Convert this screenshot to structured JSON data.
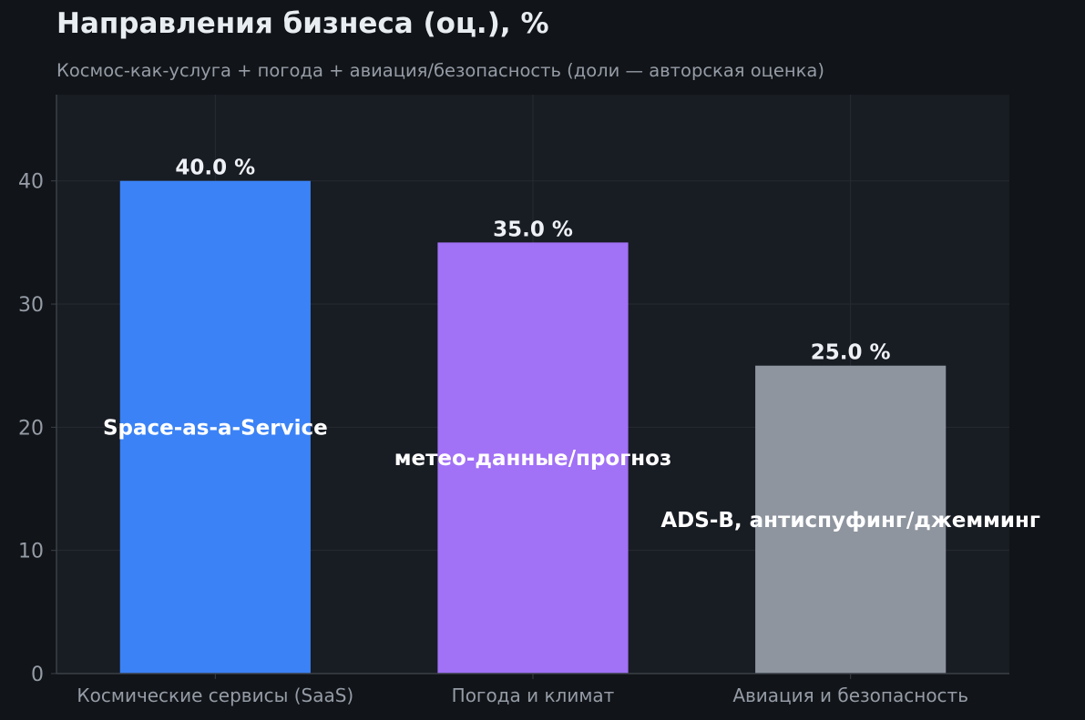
{
  "title": "Направления бизнеса (оц.), %",
  "subtitle": "Космос-как-услуга + погода + авиация/безопасность (доли — авторская оценка)",
  "colors": {
    "background": "#111418",
    "plot_background": "#181c23",
    "grid": "#262b33",
    "axis": "#3a4048",
    "tick_text": "#959ca6",
    "value_label": "#eef1f5",
    "inner_label": "#ffffff"
  },
  "chart_data": {
    "type": "bar",
    "title": "Направления бизнеса (оц.), %",
    "subtitle": "Космос-как-услуга + погода + авиация/безопасность (доли — авторская оценка)",
    "xlabel": "",
    "ylabel": "",
    "categories": [
      "Космические сервисы (SaaS)",
      "Погода и климат",
      "Авиация и безопасность"
    ],
    "values": [
      40.0,
      35.0,
      25.0
    ],
    "value_labels": [
      "40.0 %",
      "35.0 %",
      "25.0 %"
    ],
    "bar_labels": [
      "Space-as-a-Service",
      "метео-данные/прогноз",
      "ADS-B, антиспуфинг/джемминг"
    ],
    "bar_colors": [
      "#3b82f6",
      "#a171f6",
      "#8e959f"
    ],
    "ylim": [
      0,
      47
    ],
    "yticks": [
      0,
      10,
      20,
      30,
      40
    ],
    "grid": true,
    "legend": "none"
  }
}
